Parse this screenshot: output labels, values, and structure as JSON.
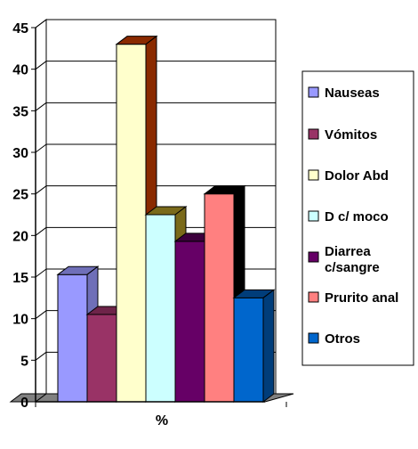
{
  "chart_data": {
    "type": "bar",
    "style": "3d-clustered-column",
    "categories": [
      "%"
    ],
    "xlabel": "%",
    "ylim": [
      0,
      45
    ],
    "yticks": [
      0,
      5,
      10,
      15,
      20,
      25,
      30,
      35,
      40,
      45
    ],
    "grid": true,
    "legend_position": "right",
    "series": [
      {
        "name": "Nauseas",
        "value": 15.3,
        "color": "#9999ff",
        "dark": "#6f6fb8"
      },
      {
        "name": "Vómitos",
        "value": 10.5,
        "color": "#993366",
        "dark": "#6e2449"
      },
      {
        "name": "Dolor Abd",
        "value": 43,
        "color": "#ffffcc",
        "dark": "#8a2a00"
      },
      {
        "name": "D c/ moco",
        "value": 22.5,
        "color": "#ccffff",
        "dark": "#7a6a1a"
      },
      {
        "name": "Diarrea c/sangre",
        "value": 19.3,
        "color": "#660066",
        "dark": "#3d003d"
      },
      {
        "name": "Prurito anal",
        "value": 25,
        "color": "#ff8080",
        "dark": "#000000"
      },
      {
        "name": "Otros",
        "value": 12.5,
        "color": "#0066cc",
        "dark": "#003d7a"
      }
    ]
  }
}
